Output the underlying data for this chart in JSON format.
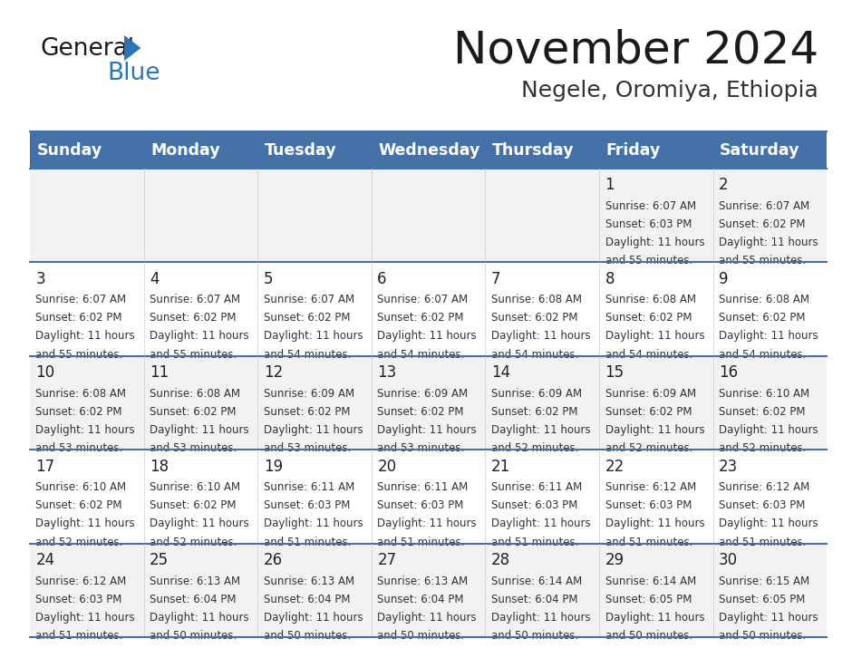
{
  "title": "November 2024",
  "subtitle": "Negele, Oromiya, Ethiopia",
  "days_of_week": [
    "Sunday",
    "Monday",
    "Tuesday",
    "Wednesday",
    "Thursday",
    "Friday",
    "Saturday"
  ],
  "header_bg": "#4472a8",
  "header_text": "#ffffff",
  "row_bg_odd": "#f2f2f2",
  "row_bg_even": "#ffffff",
  "cell_text_color": "#333333",
  "day_num_color": "#222222",
  "divider_color": "#4472a8",
  "title_color": "#1a1a1a",
  "subtitle_color": "#333333",
  "calendar": [
    [
      {
        "day": null,
        "sunrise": null,
        "sunset": null,
        "daylight": null
      },
      {
        "day": null,
        "sunrise": null,
        "sunset": null,
        "daylight": null
      },
      {
        "day": null,
        "sunrise": null,
        "sunset": null,
        "daylight": null
      },
      {
        "day": null,
        "sunrise": null,
        "sunset": null,
        "daylight": null
      },
      {
        "day": null,
        "sunrise": null,
        "sunset": null,
        "daylight": null
      },
      {
        "day": 1,
        "sunrise": "6:07 AM",
        "sunset": "6:03 PM",
        "daylight": "11 hours and 55 minutes."
      },
      {
        "day": 2,
        "sunrise": "6:07 AM",
        "sunset": "6:02 PM",
        "daylight": "11 hours and 55 minutes."
      }
    ],
    [
      {
        "day": 3,
        "sunrise": "6:07 AM",
        "sunset": "6:02 PM",
        "daylight": "11 hours and 55 minutes."
      },
      {
        "day": 4,
        "sunrise": "6:07 AM",
        "sunset": "6:02 PM",
        "daylight": "11 hours and 55 minutes."
      },
      {
        "day": 5,
        "sunrise": "6:07 AM",
        "sunset": "6:02 PM",
        "daylight": "11 hours and 54 minutes."
      },
      {
        "day": 6,
        "sunrise": "6:07 AM",
        "sunset": "6:02 PM",
        "daylight": "11 hours and 54 minutes."
      },
      {
        "day": 7,
        "sunrise": "6:08 AM",
        "sunset": "6:02 PM",
        "daylight": "11 hours and 54 minutes."
      },
      {
        "day": 8,
        "sunrise": "6:08 AM",
        "sunset": "6:02 PM",
        "daylight": "11 hours and 54 minutes."
      },
      {
        "day": 9,
        "sunrise": "6:08 AM",
        "sunset": "6:02 PM",
        "daylight": "11 hours and 54 minutes."
      }
    ],
    [
      {
        "day": 10,
        "sunrise": "6:08 AM",
        "sunset": "6:02 PM",
        "daylight": "11 hours and 53 minutes."
      },
      {
        "day": 11,
        "sunrise": "6:08 AM",
        "sunset": "6:02 PM",
        "daylight": "11 hours and 53 minutes."
      },
      {
        "day": 12,
        "sunrise": "6:09 AM",
        "sunset": "6:02 PM",
        "daylight": "11 hours and 53 minutes."
      },
      {
        "day": 13,
        "sunrise": "6:09 AM",
        "sunset": "6:02 PM",
        "daylight": "11 hours and 53 minutes."
      },
      {
        "day": 14,
        "sunrise": "6:09 AM",
        "sunset": "6:02 PM",
        "daylight": "11 hours and 52 minutes."
      },
      {
        "day": 15,
        "sunrise": "6:09 AM",
        "sunset": "6:02 PM",
        "daylight": "11 hours and 52 minutes."
      },
      {
        "day": 16,
        "sunrise": "6:10 AM",
        "sunset": "6:02 PM",
        "daylight": "11 hours and 52 minutes."
      }
    ],
    [
      {
        "day": 17,
        "sunrise": "6:10 AM",
        "sunset": "6:02 PM",
        "daylight": "11 hours and 52 minutes."
      },
      {
        "day": 18,
        "sunrise": "6:10 AM",
        "sunset": "6:02 PM",
        "daylight": "11 hours and 52 minutes."
      },
      {
        "day": 19,
        "sunrise": "6:11 AM",
        "sunset": "6:03 PM",
        "daylight": "11 hours and 51 minutes."
      },
      {
        "day": 20,
        "sunrise": "6:11 AM",
        "sunset": "6:03 PM",
        "daylight": "11 hours and 51 minutes."
      },
      {
        "day": 21,
        "sunrise": "6:11 AM",
        "sunset": "6:03 PM",
        "daylight": "11 hours and 51 minutes."
      },
      {
        "day": 22,
        "sunrise": "6:12 AM",
        "sunset": "6:03 PM",
        "daylight": "11 hours and 51 minutes."
      },
      {
        "day": 23,
        "sunrise": "6:12 AM",
        "sunset": "6:03 PM",
        "daylight": "11 hours and 51 minutes."
      }
    ],
    [
      {
        "day": 24,
        "sunrise": "6:12 AM",
        "sunset": "6:03 PM",
        "daylight": "11 hours and 51 minutes."
      },
      {
        "day": 25,
        "sunrise": "6:13 AM",
        "sunset": "6:04 PM",
        "daylight": "11 hours and 50 minutes."
      },
      {
        "day": 26,
        "sunrise": "6:13 AM",
        "sunset": "6:04 PM",
        "daylight": "11 hours and 50 minutes."
      },
      {
        "day": 27,
        "sunrise": "6:13 AM",
        "sunset": "6:04 PM",
        "daylight": "11 hours and 50 minutes."
      },
      {
        "day": 28,
        "sunrise": "6:14 AM",
        "sunset": "6:04 PM",
        "daylight": "11 hours and 50 minutes."
      },
      {
        "day": 29,
        "sunrise": "6:14 AM",
        "sunset": "6:05 PM",
        "daylight": "11 hours and 50 minutes."
      },
      {
        "day": 30,
        "sunrise": "6:15 AM",
        "sunset": "6:05 PM",
        "daylight": "11 hours and 50 minutes."
      }
    ]
  ]
}
